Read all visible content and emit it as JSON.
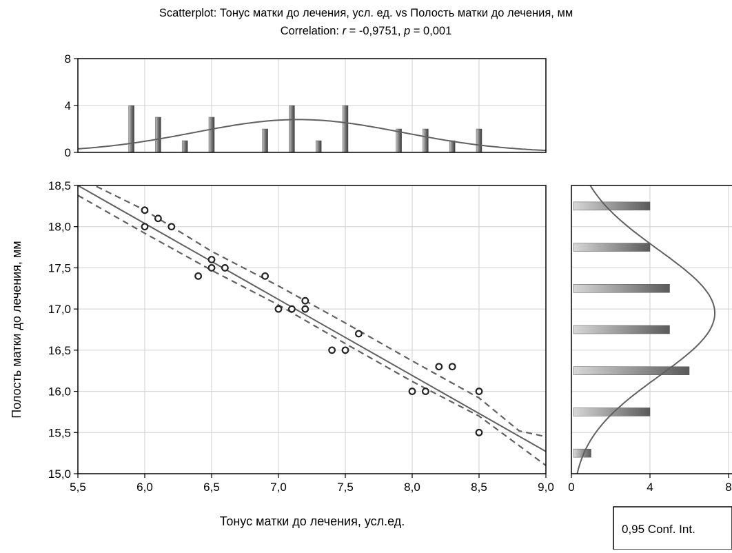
{
  "chart_data": {
    "type": "scatter",
    "title": "Scatterplot: Тонус матки до лечения, усл. ед. vs Полость матки до лечения, мм",
    "subtitle": {
      "prefix": "Correlation: ",
      "r_label": "r",
      "r_value": " = -0,9751, ",
      "p_label": "p",
      "p_value": " = 0,001"
    },
    "xlabel": "Тонус матки до лечения, усл.ед.",
    "ylabel": "Полость матки до лечения, мм",
    "xlim": [
      5.5,
      9.0
    ],
    "ylim": [
      15.0,
      18.5
    ],
    "x_ticks": [
      "5,5",
      "6,0",
      "6,5",
      "7,0",
      "7,5",
      "8,0",
      "8,5",
      "9,0"
    ],
    "y_ticks": [
      "15,0",
      "15,5",
      "16,0",
      "16,5",
      "17,0",
      "17,5",
      "18,0",
      "18,5"
    ],
    "grid": true,
    "points": [
      {
        "x": 6.0,
        "y": 18.2
      },
      {
        "x": 6.0,
        "y": 18.0
      },
      {
        "x": 6.1,
        "y": 18.1
      },
      {
        "x": 6.2,
        "y": 18.0
      },
      {
        "x": 6.4,
        "y": 17.4
      },
      {
        "x": 6.5,
        "y": 17.6
      },
      {
        "x": 6.5,
        "y": 17.5
      },
      {
        "x": 6.6,
        "y": 17.5
      },
      {
        "x": 6.9,
        "y": 17.4
      },
      {
        "x": 7.0,
        "y": 17.0
      },
      {
        "x": 7.1,
        "y": 17.0
      },
      {
        "x": 7.2,
        "y": 17.1
      },
      {
        "x": 7.2,
        "y": 17.0
      },
      {
        "x": 7.4,
        "y": 16.5
      },
      {
        "x": 7.5,
        "y": 16.5
      },
      {
        "x": 7.6,
        "y": 16.7
      },
      {
        "x": 8.0,
        "y": 16.0
      },
      {
        "x": 8.1,
        "y": 16.0
      },
      {
        "x": 8.2,
        "y": 16.3
      },
      {
        "x": 8.3,
        "y": 16.3
      },
      {
        "x": 8.5,
        "y": 16.0
      },
      {
        "x": 8.5,
        "y": 15.5
      }
    ],
    "regression_line": {
      "x0": 5.5,
      "y0": 18.5,
      "x1": 9.0,
      "y1": 15.27
    },
    "conf_band_upper": [
      {
        "x": 5.5,
        "y": 18.6
      },
      {
        "x": 6.0,
        "y": 18.2
      },
      {
        "x": 6.5,
        "y": 17.7
      },
      {
        "x": 7.0,
        "y": 17.28
      },
      {
        "x": 7.5,
        "y": 16.83
      },
      {
        "x": 8.0,
        "y": 16.37
      },
      {
        "x": 8.5,
        "y": 15.92
      },
      {
        "x": 8.8,
        "y": 15.52
      },
      {
        "x": 9.0,
        "y": 15.45
      }
    ],
    "conf_band_lower": [
      {
        "x": 5.5,
        "y": 18.38
      },
      {
        "x": 6.0,
        "y": 17.92
      },
      {
        "x": 6.5,
        "y": 17.47
      },
      {
        "x": 7.0,
        "y": 17.05
      },
      {
        "x": 7.5,
        "y": 16.58
      },
      {
        "x": 8.0,
        "y": 16.12
      },
      {
        "x": 8.5,
        "y": 15.7
      },
      {
        "x": 9.0,
        "y": 15.1
      }
    ],
    "top_histogram": {
      "ylim": [
        0,
        8
      ],
      "y_ticks": [
        "0",
        "4",
        "8"
      ],
      "bars": [
        {
          "x": 5.9,
          "count": 4
        },
        {
          "x": 6.1,
          "count": 3
        },
        {
          "x": 6.3,
          "count": 1
        },
        {
          "x": 6.5,
          "count": 3
        },
        {
          "x": 6.9,
          "count": 2
        },
        {
          "x": 7.1,
          "count": 4
        },
        {
          "x": 7.3,
          "count": 1
        },
        {
          "x": 7.5,
          "count": 4
        },
        {
          "x": 7.9,
          "count": 2
        },
        {
          "x": 8.1,
          "count": 2
        },
        {
          "x": 8.3,
          "count": 1
        },
        {
          "x": 8.5,
          "count": 2
        }
      ],
      "normal_curve": {
        "mean": 7.15,
        "sd": 0.78,
        "peak": 2.8
      }
    },
    "right_histogram": {
      "xlim": [
        0,
        8
      ],
      "x_ticks": [
        "0",
        "4",
        "8"
      ],
      "bars": [
        {
          "y": 18.25,
          "count": 4
        },
        {
          "y": 17.75,
          "count": 4
        },
        {
          "y": 17.25,
          "count": 5
        },
        {
          "y": 16.75,
          "count": 5
        },
        {
          "y": 16.25,
          "count": 6
        },
        {
          "y": 15.75,
          "count": 4
        },
        {
          "y": 15.25,
          "count": 1
        }
      ],
      "normal_curve": {
        "mean": 16.95,
        "sd": 0.77,
        "peak": 7.3
      }
    },
    "legend": {
      "label": "0,95 Conf. Int.",
      "placement": "bottom-right"
    }
  }
}
